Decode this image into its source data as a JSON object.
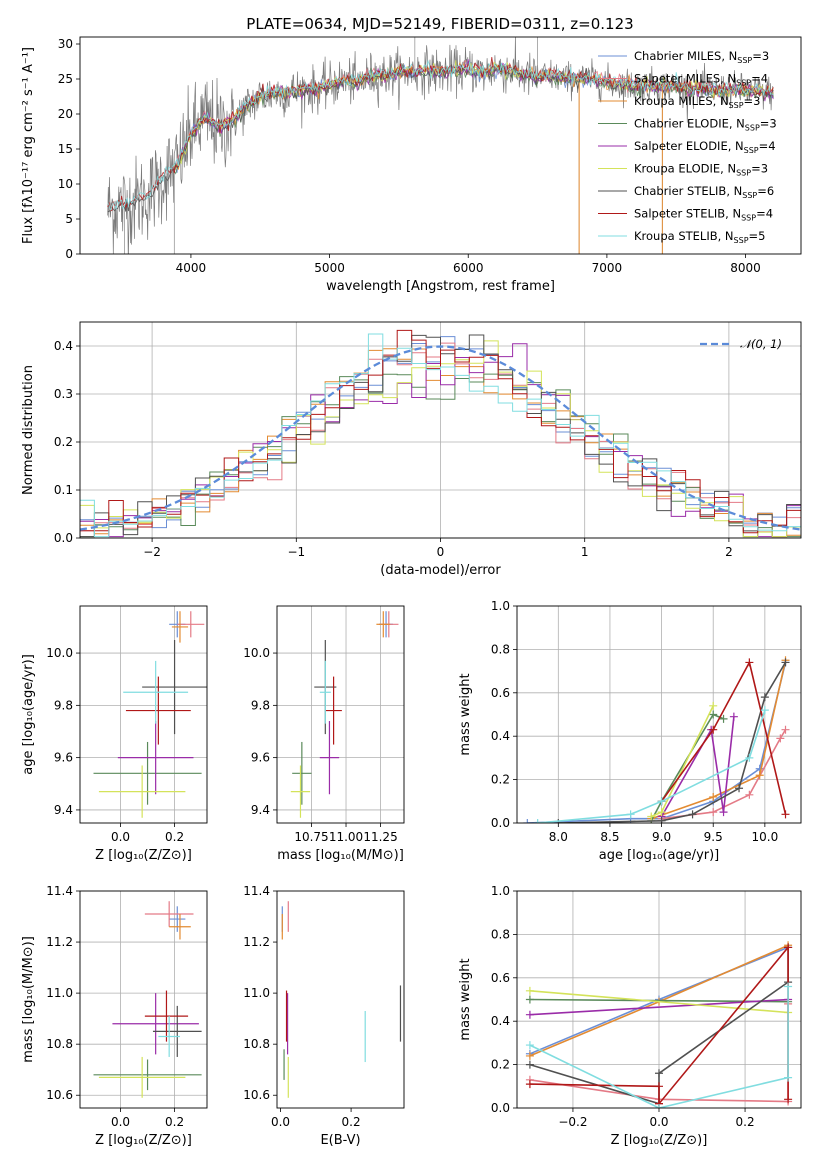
{
  "figure_title": "PLATE=0634, MJD=52149, FIBERID=0311, z=0.123",
  "legend_entries": [
    {
      "name": "Chabrier MILES, N",
      "sub": "SSP",
      "eq": "=3",
      "color": "#6b8fd6"
    },
    {
      "name": "Salpeter MILES, N",
      "sub": "SSP",
      "eq": "=4",
      "color": "#e47a86"
    },
    {
      "name": "Kroupa MILES, N",
      "sub": "SSP",
      "eq": "=3",
      "color": "#e38b32"
    },
    {
      "name": "Chabrier ELODIE, N",
      "sub": "SSP",
      "eq": "=3",
      "color": "#5a8a5a"
    },
    {
      "name": "Salpeter ELODIE, N",
      "sub": "SSP",
      "eq": "=4",
      "color": "#9a2ca8"
    },
    {
      "name": "Kroupa ELODIE, N",
      "sub": "SSP",
      "eq": "=3",
      "color": "#d4e35a"
    },
    {
      "name": "Chabrier STELIB, N",
      "sub": "SSP",
      "eq": "=6",
      "color": "#505050"
    },
    {
      "name": "Salpeter STELIB, N",
      "sub": "SSP",
      "eq": "=4",
      "color": "#b01818"
    },
    {
      "name": "Kroupa STELIB, N",
      "sub": "SSP",
      "eq": "=5",
      "color": "#80dde0"
    }
  ],
  "chart_data": [
    {
      "id": "spectrum",
      "type": "line",
      "xlabel": "wavelength [Angstrom, rest frame]",
      "ylabel": "Flux [fλ10⁻¹⁷ erg cm⁻² s⁻¹ A⁻¹]",
      "xlim": [
        3200,
        8400
      ],
      "ylim": [
        0,
        31
      ],
      "xticks": [
        4000,
        5000,
        6000,
        7000,
        8000
      ],
      "yticks": [
        0,
        5,
        10,
        15,
        20,
        25,
        30
      ],
      "grid": false,
      "continuum": [
        [
          3400,
          6.5
        ],
        [
          3500,
          6.8
        ],
        [
          3600,
          7.5
        ],
        [
          3700,
          8.5
        ],
        [
          3800,
          11
        ],
        [
          3900,
          12.5
        ],
        [
          4000,
          17
        ],
        [
          4100,
          19.5
        ],
        [
          4200,
          18
        ],
        [
          4300,
          19
        ],
        [
          4400,
          21
        ],
        [
          4500,
          22.5
        ],
        [
          4600,
          23
        ],
        [
          4700,
          23
        ],
        [
          4800,
          23.5
        ],
        [
          4900,
          23.5
        ],
        [
          5000,
          24
        ],
        [
          5100,
          24.8
        ],
        [
          5200,
          24.5
        ],
        [
          5300,
          25.5
        ],
        [
          5400,
          25.5
        ],
        [
          5500,
          26
        ],
        [
          5600,
          26
        ],
        [
          5700,
          26.3
        ],
        [
          5800,
          26
        ],
        [
          5900,
          26.2
        ],
        [
          6000,
          26.5
        ],
        [
          6100,
          25.8
        ],
        [
          6200,
          26.5
        ],
        [
          6300,
          26.2
        ],
        [
          6400,
          25.5
        ],
        [
          6500,
          25.2
        ],
        [
          6600,
          25.5
        ],
        [
          6700,
          25
        ],
        [
          6800,
          25
        ],
        [
          6900,
          25
        ],
        [
          7000,
          24.5
        ],
        [
          7100,
          24.3
        ],
        [
          7200,
          24
        ],
        [
          7300,
          24
        ],
        [
          7400,
          24
        ],
        [
          7500,
          24
        ],
        [
          7600,
          23.5
        ],
        [
          7700,
          23.5
        ],
        [
          7800,
          23.3
        ],
        [
          7900,
          23.5
        ],
        [
          8000,
          23.3
        ],
        [
          8100,
          23.2
        ],
        [
          8200,
          23
        ]
      ],
      "data_start": 3400,
      "data_end": 8200
    },
    {
      "id": "residual_hist",
      "type": "histogram",
      "xlabel": "(data-model)/error",
      "ylabel": "Normed distribution",
      "xlim": [
        -2.5,
        2.5
      ],
      "ylim": [
        0,
        0.45
      ],
      "xticks": [
        -2,
        -1,
        0,
        1,
        2
      ],
      "yticks": [
        0.0,
        0.1,
        0.2,
        0.3,
        0.4
      ],
      "grid": true,
      "legend": "top-right",
      "reference_label": "𝒩(0, 1)",
      "bin_width": 0.1
    },
    {
      "id": "age_vs_Z",
      "type": "scatter",
      "xlabel": "Z [log₁₀(Z/Z⊙)]",
      "ylabel": "age  [log₁₀(age/yr)]",
      "xlim": [
        -0.15,
        0.32
      ],
      "ylim": [
        9.35,
        10.18
      ],
      "xticks": [
        0.0,
        0.2
      ],
      "yticks": [
        9.4,
        9.6,
        9.8,
        10.0
      ],
      "grid": true,
      "points": [
        {
          "c": 0,
          "x": 0.21,
          "xe": 0.03,
          "y": 10.11,
          "ye": 0.05
        },
        {
          "c": 1,
          "x": 0.26,
          "xe": 0.05,
          "y": 10.11,
          "ye": 0.05
        },
        {
          "c": 2,
          "x": 0.22,
          "xe": 0.03,
          "y": 10.1,
          "ye": 0.06
        },
        {
          "c": 3,
          "x": 0.1,
          "xe": 0.2,
          "y": 9.54,
          "ye": 0.12
        },
        {
          "c": 4,
          "x": 0.13,
          "xe": 0.14,
          "y": 9.6,
          "ye": 0.14
        },
        {
          "c": 5,
          "x": 0.08,
          "xe": 0.16,
          "y": 9.47,
          "ye": 0.1
        },
        {
          "c": 6,
          "x": 0.2,
          "xe": 0.12,
          "y": 9.87,
          "ye": 0.18
        },
        {
          "c": 7,
          "x": 0.14,
          "xe": 0.12,
          "y": 9.78,
          "ye": 0.13
        },
        {
          "c": 8,
          "x": 0.13,
          "xe": 0.12,
          "y": 9.85,
          "ye": 0.12
        }
      ]
    },
    {
      "id": "age_vs_mass",
      "type": "scatter",
      "xlabel": "mass [log₁₀(M/M⊙)]",
      "ylabel": "",
      "xlim": [
        10.5,
        11.42
      ],
      "ylim": [
        9.35,
        10.18
      ],
      "xticks": [
        10.75,
        11.0,
        11.25
      ],
      "yticks": [
        9.4,
        9.6,
        9.8,
        10.0
      ],
      "grid": true,
      "points": [
        {
          "c": 0,
          "x": 11.29,
          "xe": 0.05,
          "y": 10.11,
          "ye": 0.05
        },
        {
          "c": 1,
          "x": 11.31,
          "xe": 0.07,
          "y": 10.11,
          "ye": 0.05
        },
        {
          "c": 2,
          "x": 11.27,
          "xe": 0.05,
          "y": 10.11,
          "ye": 0.05
        },
        {
          "c": 3,
          "x": 10.68,
          "xe": 0.07,
          "y": 9.54,
          "ye": 0.12
        },
        {
          "c": 4,
          "x": 10.88,
          "xe": 0.07,
          "y": 9.6,
          "ye": 0.14
        },
        {
          "c": 5,
          "x": 10.67,
          "xe": 0.07,
          "y": 9.47,
          "ye": 0.1
        },
        {
          "c": 6,
          "x": 10.85,
          "xe": 0.08,
          "y": 9.87,
          "ye": 0.18
        },
        {
          "c": 7,
          "x": 10.91,
          "xe": 0.06,
          "y": 9.78,
          "ye": 0.13
        },
        {
          "c": 8,
          "x": 10.85,
          "xe": 0.04,
          "y": 9.85,
          "ye": 0.12
        }
      ]
    },
    {
      "id": "weight_vs_age",
      "type": "line",
      "xlabel": "age  [log₁₀(age/yr)]",
      "ylabel": "mass weight",
      "xlim": [
        7.6,
        10.35
      ],
      "ylim": [
        0,
        1.0
      ],
      "xticks": [
        8.0,
        8.5,
        9.0,
        9.5,
        10.0
      ],
      "yticks": [
        0.0,
        0.2,
        0.4,
        0.6,
        0.8,
        1.0
      ],
      "grid": true,
      "series": [
        {
          "c": 0,
          "x": [
            7.7,
            8.7,
            9.0,
            9.5,
            9.95,
            10.2
          ],
          "y": [
            0,
            0.02,
            0.02,
            0.1,
            0.25,
            0.74
          ]
        },
        {
          "c": 1,
          "x": [
            9.0,
            9.5,
            9.85,
            10.15,
            10.2
          ],
          "y": [
            0.02,
            0.05,
            0.13,
            0.39,
            0.43
          ]
        },
        {
          "c": 2,
          "x": [
            8.9,
            9.5,
            9.95,
            10.2
          ],
          "y": [
            0.02,
            0.12,
            0.22,
            0.75
          ]
        },
        {
          "c": 3,
          "x": [
            8.9,
            9.0,
            9.5,
            9.6
          ],
          "y": [
            0.01,
            0.1,
            0.5,
            0.48
          ]
        },
        {
          "c": 4,
          "x": [
            9.0,
            9.48,
            9.6,
            9.7
          ],
          "y": [
            0.03,
            0.43,
            0.05,
            0.49
          ]
        },
        {
          "c": 5,
          "x": [
            8.9,
            9.0,
            9.5
          ],
          "y": [
            0.03,
            0.05,
            0.54
          ]
        },
        {
          "c": 6,
          "x": [
            8.0,
            9.0,
            9.3,
            9.75,
            10.0,
            10.2
          ],
          "y": [
            0.0,
            0.01,
            0.04,
            0.16,
            0.58,
            0.74
          ]
        },
        {
          "c": 7,
          "x": [
            9.0,
            9.5,
            9.85,
            10.2
          ],
          "y": [
            0.1,
            0.43,
            0.74,
            0.04
          ]
        },
        {
          "c": 8,
          "x": [
            7.8,
            8.7,
            9.0,
            9.85,
            10.0
          ],
          "y": [
            0.0,
            0.04,
            0.1,
            0.3,
            0.52
          ]
        }
      ]
    },
    {
      "id": "mass_vs_Z",
      "type": "scatter",
      "xlabel": "Z [log₁₀(Z/Z⊙)]",
      "ylabel": "mass [log₁₀(M/M⊙)]",
      "xlim": [
        -0.15,
        0.32
      ],
      "ylim": [
        10.55,
        11.4
      ],
      "xticks": [
        0.0,
        0.2
      ],
      "yticks": [
        10.6,
        10.8,
        11.0,
        11.2,
        11.4
      ],
      "grid": true,
      "points": [
        {
          "c": 0,
          "x": 0.21,
          "xe": 0.03,
          "y": 11.29,
          "ye": 0.05
        },
        {
          "c": 1,
          "x": 0.18,
          "xe": 0.09,
          "y": 11.31,
          "ye": 0.05
        },
        {
          "c": 2,
          "x": 0.22,
          "xe": 0.04,
          "y": 11.26,
          "ye": 0.05
        },
        {
          "c": 3,
          "x": 0.1,
          "xe": 0.2,
          "y": 10.68,
          "ye": 0.06
        },
        {
          "c": 4,
          "x": 0.13,
          "xe": 0.16,
          "y": 10.88,
          "ye": 0.12
        },
        {
          "c": 5,
          "x": 0.08,
          "xe": 0.16,
          "y": 10.67,
          "ye": 0.08
        },
        {
          "c": 6,
          "x": 0.21,
          "xe": 0.09,
          "y": 10.85,
          "ye": 0.1
        },
        {
          "c": 7,
          "x": 0.17,
          "xe": 0.08,
          "y": 10.91,
          "ye": 0.1
        },
        {
          "c": 8,
          "x": 0.18,
          "xe": 0.04,
          "y": 10.83,
          "ye": 0.08
        }
      ]
    },
    {
      "id": "mass_vs_EBV",
      "type": "scatter",
      "xlabel": "E(B-V)",
      "ylabel": "",
      "xlim": [
        -0.01,
        0.35
      ],
      "ylim": [
        10.55,
        11.4
      ],
      "xticks": [
        0.0,
        0.2
      ],
      "yticks": [
        10.6,
        10.8,
        11.0,
        11.2,
        11.4
      ],
      "grid": false,
      "points": [
        {
          "c": 0,
          "x": 0.005,
          "xe": 0,
          "y": 11.29,
          "ye": 0.05
        },
        {
          "c": 1,
          "x": 0.022,
          "xe": 0,
          "y": 11.3,
          "ye": 0.06
        },
        {
          "c": 2,
          "x": 0.005,
          "xe": 0,
          "y": 11.26,
          "ye": 0.05
        },
        {
          "c": 3,
          "x": 0.01,
          "xe": 0,
          "y": 10.72,
          "ye": 0.06
        },
        {
          "c": 4,
          "x": 0.02,
          "xe": 0,
          "y": 10.88,
          "ye": 0.12
        },
        {
          "c": 5,
          "x": 0.022,
          "xe": 0,
          "y": 10.67,
          "ye": 0.08
        },
        {
          "c": 6,
          "x": 0.34,
          "xe": 0,
          "y": 10.92,
          "ye": 0.11
        },
        {
          "c": 7,
          "x": 0.017,
          "xe": 0,
          "y": 10.91,
          "ye": 0.1
        },
        {
          "c": 8,
          "x": 0.24,
          "xe": 0,
          "y": 10.83,
          "ye": 0.1
        }
      ]
    },
    {
      "id": "weight_vs_Z",
      "type": "line",
      "xlabel": "Z [log₁₀(Z/Z⊙)]",
      "ylabel": "mass weight",
      "xlim": [
        -0.33,
        0.33
      ],
      "ylim": [
        0,
        1.0
      ],
      "xticks": [
        -0.2,
        0.0,
        0.2
      ],
      "yticks": [
        0.0,
        0.2,
        0.4,
        0.6,
        0.8,
        1.0
      ],
      "grid": true,
      "series": [
        {
          "c": 0,
          "x": [
            -0.3,
            0.0,
            0.3
          ],
          "y": [
            0.25,
            0.5,
            0.74
          ]
        },
        {
          "c": 1,
          "x": [
            -0.3,
            0.0,
            0.3,
            0.3
          ],
          "y": [
            0.13,
            0.04,
            0.03,
            0.48
          ]
        },
        {
          "c": 2,
          "x": [
            -0.3,
            0.0,
            0.3
          ],
          "y": [
            0.24,
            0.49,
            0.75
          ]
        },
        {
          "c": 3,
          "x": [
            -0.3,
            0.3
          ],
          "y": [
            0.5,
            0.49
          ]
        },
        {
          "c": 4,
          "x": [
            -0.3,
            0.3
          ],
          "y": [
            0.43,
            0.5
          ]
        },
        {
          "c": 5,
          "x": [
            -0.3,
            0.3
          ],
          "y": [
            0.54,
            0.44
          ]
        },
        {
          "c": 6,
          "x": [
            -0.3,
            0.0,
            0.0,
            0.3,
            0.3
          ],
          "y": [
            0.2,
            0.02,
            0.16,
            0.58,
            0.74
          ]
        },
        {
          "c": 7,
          "x": [
            -0.3,
            0.0,
            0.0,
            0.3,
            0.3
          ],
          "y": [
            0.11,
            0.1,
            0.02,
            0.74,
            0.04
          ]
        },
        {
          "c": 8,
          "x": [
            -0.3,
            0.0,
            0.3,
            0.3
          ],
          "y": [
            0.29,
            0.0,
            0.14,
            0.56
          ]
        }
      ]
    }
  ]
}
